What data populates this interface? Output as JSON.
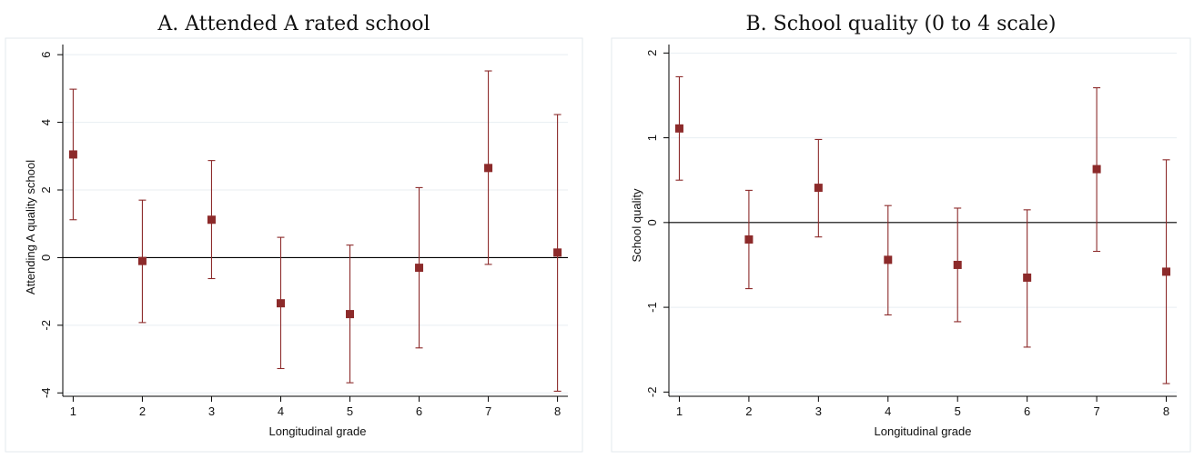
{
  "chart_data": [
    {
      "type": "scatter",
      "title": "A. Attended A rated school",
      "xlabel": "Longitudinal grade",
      "ylabel": "Attending A quality school",
      "x": [
        1,
        2,
        3,
        4,
        5,
        6,
        7,
        8
      ],
      "xlim": [
        0.85,
        8.15
      ],
      "ylim": [
        -4.1,
        6.3
      ],
      "yticks": [
        6,
        4,
        2,
        0,
        -2,
        -4
      ],
      "ytick_labels": [
        "6",
        "4",
        "2",
        "0",
        "-2",
        "-4"
      ],
      "xtick_labels": [
        "1",
        "2",
        "3",
        "4",
        "5",
        "6",
        "7",
        "8"
      ],
      "grid": true,
      "zero_line": true,
      "series": [
        {
          "values": [
            3.05,
            -0.1,
            1.12,
            -1.35,
            -1.67,
            -0.3,
            2.65,
            0.15
          ],
          "lower": [
            1.12,
            -1.92,
            -0.62,
            -3.28,
            -3.7,
            -2.67,
            -0.2,
            -3.95
          ],
          "upper": [
            4.98,
            1.7,
            2.87,
            0.6,
            0.37,
            2.07,
            5.52,
            4.23
          ]
        }
      ]
    },
    {
      "type": "scatter",
      "title": "B. School quality (0 to 4 scale)",
      "xlabel": "Longitudinal grade",
      "ylabel": "School quality",
      "x": [
        1,
        2,
        3,
        4,
        5,
        6,
        7,
        8
      ],
      "xlim": [
        0.85,
        8.15
      ],
      "ylim": [
        -2.05,
        2.1
      ],
      "yticks": [
        2,
        1,
        0,
        -1,
        -2
      ],
      "ytick_labels": [
        "2",
        "1",
        "0",
        "-1",
        "-2"
      ],
      "xtick_labels": [
        "1",
        "2",
        "3",
        "4",
        "5",
        "6",
        "7",
        "8"
      ],
      "grid": true,
      "zero_line": true,
      "series": [
        {
          "values": [
            1.11,
            -0.2,
            0.41,
            -0.44,
            -0.5,
            -0.65,
            0.63,
            -0.58
          ],
          "lower": [
            0.5,
            -0.78,
            -0.17,
            -1.09,
            -1.17,
            -1.47,
            -0.34,
            -1.9
          ],
          "upper": [
            1.72,
            0.38,
            0.98,
            0.2,
            0.17,
            0.15,
            1.59,
            0.74
          ]
        }
      ]
    }
  ],
  "colors": {
    "marker": "#8c2a2a",
    "grid": "#e8eef2",
    "axis": "#000000"
  }
}
